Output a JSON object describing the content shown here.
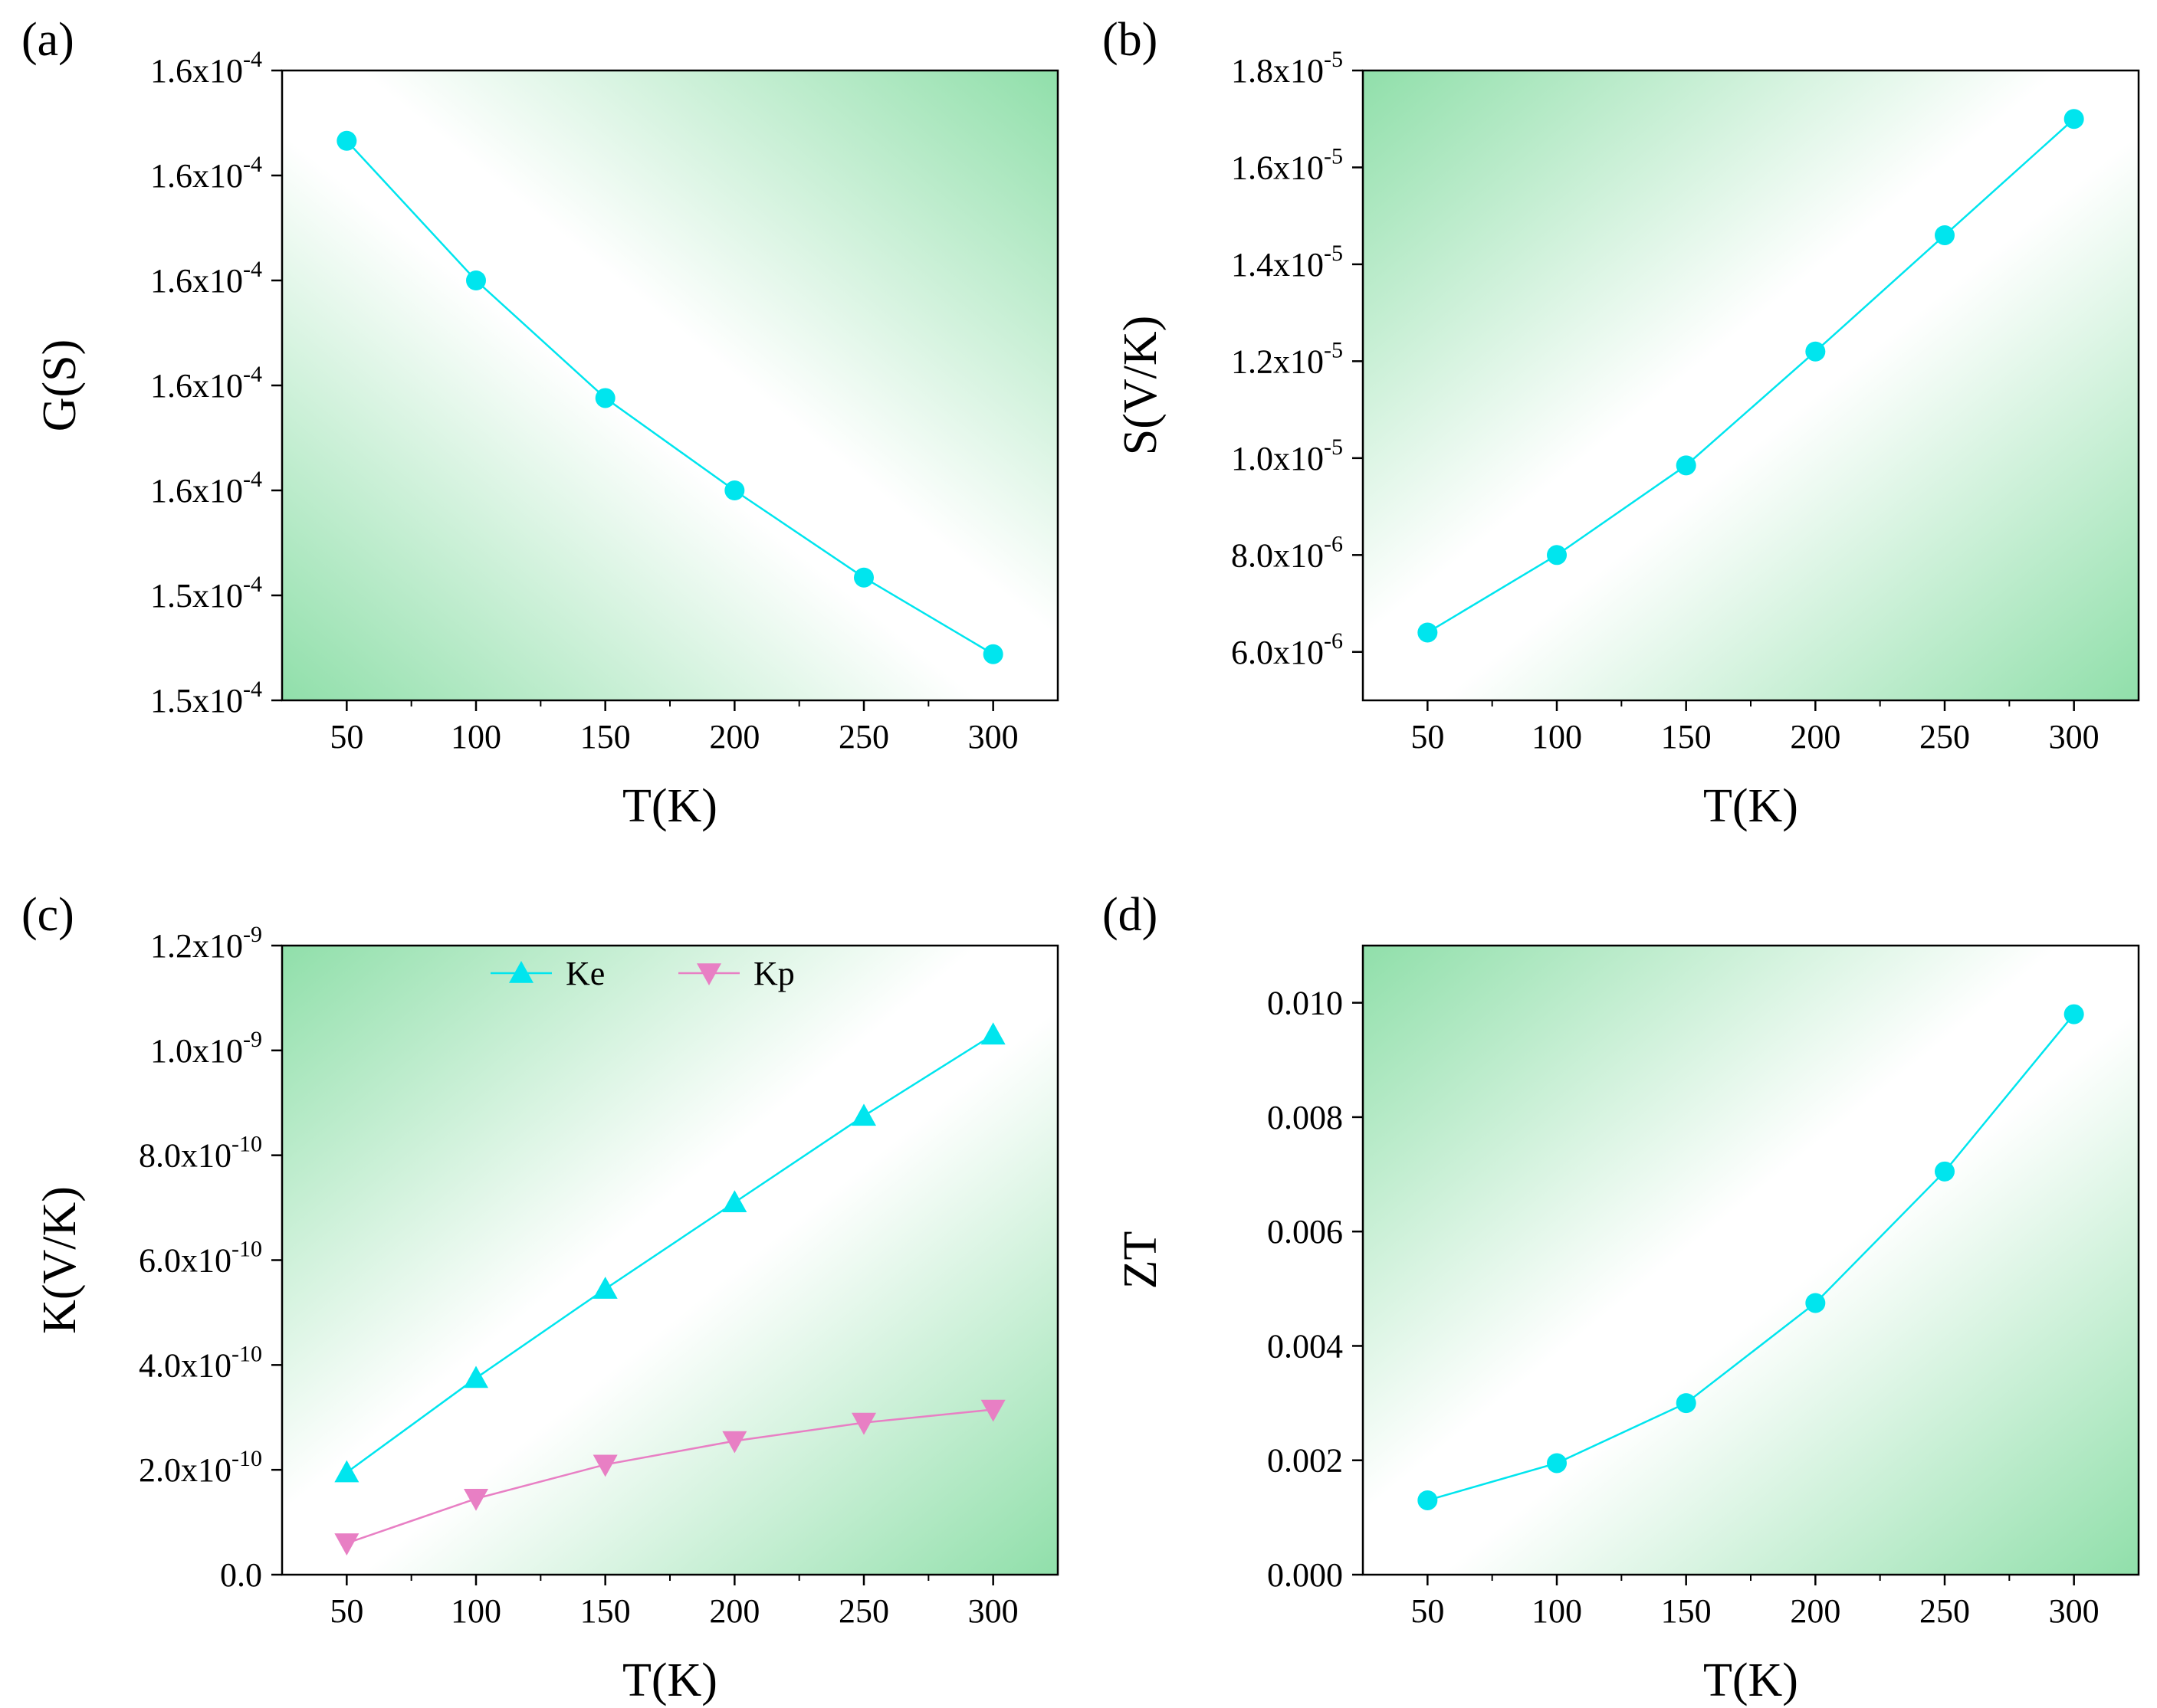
{
  "chart_data": [
    {
      "panel": "(a)",
      "type": "line",
      "xlabel": "T(K)",
      "ylabel": "G(S)",
      "x": [
        50,
        100,
        150,
        200,
        250,
        300
      ],
      "xlim": [
        25,
        325
      ],
      "xticks": [
        "50",
        "100",
        "150",
        "200",
        "250",
        "300"
      ],
      "ylim": [
        0,
        6
      ],
      "ytick_values": [
        0,
        1,
        2,
        3,
        4,
        5,
        6
      ],
      "ytick_labels": [
        {
          "mant": "1.5x10",
          "exp": "-4"
        },
        {
          "mant": "1.5x10",
          "exp": "-4"
        },
        {
          "mant": "1.6x10",
          "exp": "-4"
        },
        {
          "mant": "1.6x10",
          "exp": "-4"
        },
        {
          "mant": "1.6x10",
          "exp": "-4"
        },
        {
          "mant": "1.6x10",
          "exp": "-4"
        },
        {
          "mant": "1.6x10",
          "exp": "-4"
        }
      ],
      "series": [
        {
          "name": "G",
          "marker": "circle",
          "color": "#00e5ee",
          "values": [
            5.33,
            4.0,
            2.88,
            2.0,
            1.17,
            0.44
          ]
        }
      ]
    },
    {
      "panel": "(b)",
      "type": "line",
      "xlabel": "T(K)",
      "ylabel": "S(V/K)",
      "x": [
        50,
        100,
        150,
        200,
        250,
        300
      ],
      "xlim": [
        25,
        325
      ],
      "xticks": [
        "50",
        "100",
        "150",
        "200",
        "250",
        "300"
      ],
      "ylim": [
        5.0,
        18.0
      ],
      "ytick_values": [
        6,
        8,
        10,
        12,
        14,
        16,
        18
      ],
      "ytick_labels": [
        {
          "mant": "6.0x10",
          "exp": "-6"
        },
        {
          "mant": "8.0x10",
          "exp": "-6"
        },
        {
          "mant": "1.0x10",
          "exp": "-5"
        },
        {
          "mant": "1.2x10",
          "exp": "-5"
        },
        {
          "mant": "1.4x10",
          "exp": "-5"
        },
        {
          "mant": "1.6x10",
          "exp": "-5"
        },
        {
          "mant": "1.8x10",
          "exp": "-5"
        }
      ],
      "series": [
        {
          "name": "S",
          "marker": "circle",
          "color": "#00e5ee",
          "values": [
            6.4,
            8.0,
            9.85,
            12.2,
            14.6,
            17.0
          ]
        }
      ]
    },
    {
      "panel": "(c)",
      "type": "line",
      "xlabel": "T(K)",
      "ylabel": "K(V/K)",
      "x": [
        50,
        100,
        150,
        200,
        250,
        300
      ],
      "xlim": [
        25,
        325
      ],
      "xticks": [
        "50",
        "100",
        "150",
        "200",
        "250",
        "300"
      ],
      "ylim": [
        0,
        12
      ],
      "ytick_values": [
        0,
        2,
        4,
        6,
        8,
        10,
        12
      ],
      "ytick_labels": [
        {
          "mant": "0.0",
          "exp": ""
        },
        {
          "mant": "2.0x10",
          "exp": "-10"
        },
        {
          "mant": "4.0x10",
          "exp": "-10"
        },
        {
          "mant": "6.0x10",
          "exp": "-10"
        },
        {
          "mant": "8.0x10",
          "exp": "-10"
        },
        {
          "mant": "1.0x10",
          "exp": "-9"
        },
        {
          "mant": "1.2x10",
          "exp": "-9"
        }
      ],
      "legend": {
        "placement": "top-center"
      },
      "series": [
        {
          "name": "Ke",
          "marker": "triangle-up",
          "color": "#00e5ee",
          "values": [
            1.95,
            3.75,
            5.45,
            7.1,
            8.75,
            10.3
          ]
        },
        {
          "name": "Kp",
          "marker": "triangle-down",
          "color": "#e87fc4",
          "values": [
            0.6,
            1.45,
            2.1,
            2.55,
            2.9,
            3.15
          ]
        }
      ]
    },
    {
      "panel": "(d)",
      "type": "line",
      "xlabel": "T(K)",
      "ylabel": "ZT",
      "x": [
        50,
        100,
        150,
        200,
        250,
        300
      ],
      "xlim": [
        25,
        325
      ],
      "xticks": [
        "50",
        "100",
        "150",
        "200",
        "250",
        "300"
      ],
      "ylim": [
        0.0,
        0.011
      ],
      "ytick_values": [
        0.0,
        0.002,
        0.004,
        0.006,
        0.008,
        0.01
      ],
      "ytick_labels": [
        {
          "mant": "0.000",
          "exp": ""
        },
        {
          "mant": "0.002",
          "exp": ""
        },
        {
          "mant": "0.004",
          "exp": ""
        },
        {
          "mant": "0.006",
          "exp": ""
        },
        {
          "mant": "0.008",
          "exp": ""
        },
        {
          "mant": "0.010",
          "exp": ""
        }
      ],
      "series": [
        {
          "name": "ZT",
          "marker": "circle",
          "color": "#00e5ee",
          "values": [
            0.0013,
            0.00195,
            0.003,
            0.00475,
            0.00705,
            0.0098
          ]
        }
      ]
    }
  ]
}
